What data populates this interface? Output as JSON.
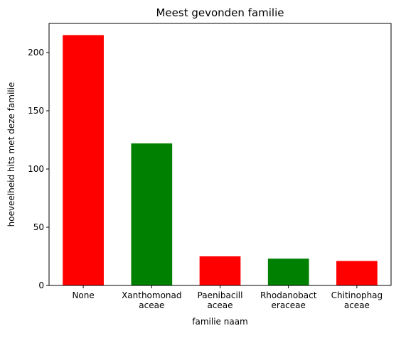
{
  "chart_data": {
    "type": "bar",
    "title": "Meest gevonden familie",
    "xlabel": "familie naam",
    "ylabel": "hoeveelheid hits met deze familie",
    "categories": [
      [
        "None"
      ],
      [
        "Xanthomonad",
        "aceae"
      ],
      [
        "Paenibacill",
        "aceae"
      ],
      [
        "Rhodanobact",
        "eraceae"
      ],
      [
        "Chitinophag",
        "aceae"
      ]
    ],
    "values": [
      215,
      122,
      25,
      23,
      21
    ],
    "bar_colors": [
      "#ff0000",
      "#008000",
      "#ff0000",
      "#008000",
      "#ff0000"
    ],
    "ylim": [
      0,
      225
    ],
    "yticks": [
      0,
      50,
      100,
      150,
      200
    ],
    "grid": false,
    "legend": "none"
  }
}
